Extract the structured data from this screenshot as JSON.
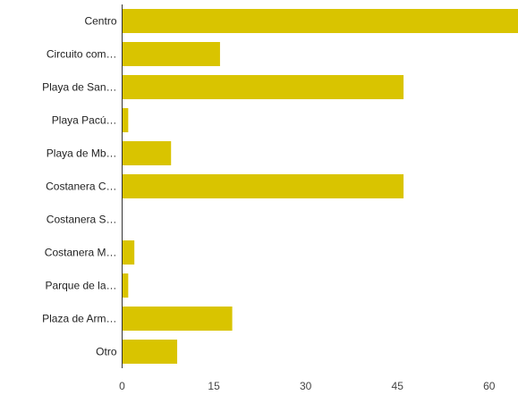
{
  "chart_data": {
    "type": "bar",
    "orientation": "horizontal",
    "categories": [
      "Centro",
      "Circuito com…",
      "Playa de San…",
      "Playa Pacú…",
      "Playa de Mb…",
      "Costanera C…",
      "Costanera S…",
      "Costanera M…",
      "Parque de la…",
      "Plaza de Arm…",
      "Otro"
    ],
    "values": [
      66,
      16,
      46,
      1,
      8,
      46,
      0,
      2,
      1,
      18,
      9
    ],
    "xlim": [
      0,
      65
    ],
    "xticks": [
      0,
      15,
      30,
      45,
      60
    ],
    "title": "",
    "xlabel": "",
    "ylabel": "",
    "bar_color": "#d9c400",
    "grid": false
  }
}
